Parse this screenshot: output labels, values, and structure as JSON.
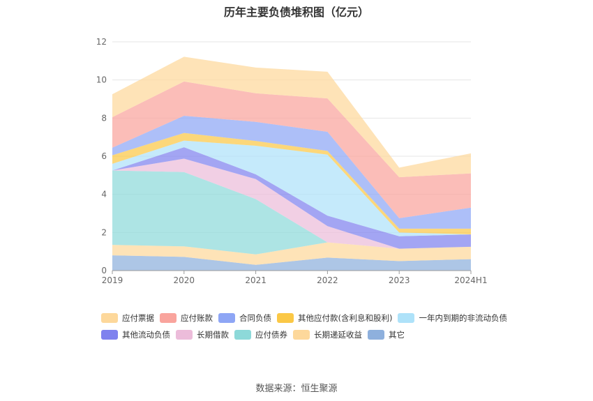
{
  "title": "历年主要负债堆积图（亿元）",
  "source": "数据来源：恒生聚源",
  "chart_data": {
    "type": "area",
    "stacked": true,
    "categories": [
      "2019",
      "2020",
      "2021",
      "2022",
      "2023",
      "2024H1"
    ],
    "ylim": [
      0,
      12
    ],
    "yticks": [
      0,
      2,
      4,
      6,
      8,
      10,
      12
    ],
    "grid": true,
    "legend_position": "bottom",
    "series": [
      {
        "name": "其它",
        "color": "#8eb0dd",
        "values": [
          0.8,
          0.72,
          0.3,
          0.68,
          0.5,
          0.6
        ]
      },
      {
        "name": "长期递延收益",
        "color": "#fdd89b",
        "values": [
          0.55,
          0.55,
          0.55,
          0.8,
          0.65,
          0.65
        ]
      },
      {
        "name": "应付债券",
        "color": "#8dd9d9",
        "values": [
          3.9,
          3.9,
          2.9,
          0.0,
          0.0,
          0.0
        ]
      },
      {
        "name": "长期借款",
        "color": "#ecbcda",
        "values": [
          0.0,
          0.7,
          1.05,
          0.85,
          0.0,
          0.0
        ]
      },
      {
        "name": "其他流动负债",
        "color": "#7f82ee",
        "values": [
          0.0,
          0.6,
          0.25,
          0.55,
          0.65,
          0.65
        ]
      },
      {
        "name": "一年内到期的非流动负债",
        "color": "#aee2f9",
        "values": [
          0.35,
          0.35,
          1.5,
          3.2,
          0.2,
          0.0
        ]
      },
      {
        "name": "其他应付款(含利息和股利)",
        "color": "#fbc846",
        "values": [
          0.45,
          0.4,
          0.25,
          0.2,
          0.2,
          0.3
        ]
      },
      {
        "name": "合同负债",
        "color": "#8ea6f5",
        "values": [
          0.4,
          0.9,
          1.0,
          1.0,
          0.55,
          1.1
        ]
      },
      {
        "name": "应付账款",
        "color": "#f9a49d",
        "values": [
          1.6,
          1.8,
          1.5,
          1.75,
          2.15,
          1.8
        ]
      },
      {
        "name": "应付票据",
        "color": "#fdd89b",
        "values": [
          1.2,
          1.3,
          1.35,
          1.4,
          0.5,
          1.05
        ]
      }
    ],
    "legend_order": [
      "应付票据",
      "应付账款",
      "合同负债",
      "其他应付款(含利息和股利)",
      "一年内到期的非流动负债",
      "其他流动负债",
      "长期借款",
      "应付债券",
      "长期递延收益",
      "其它"
    ]
  }
}
